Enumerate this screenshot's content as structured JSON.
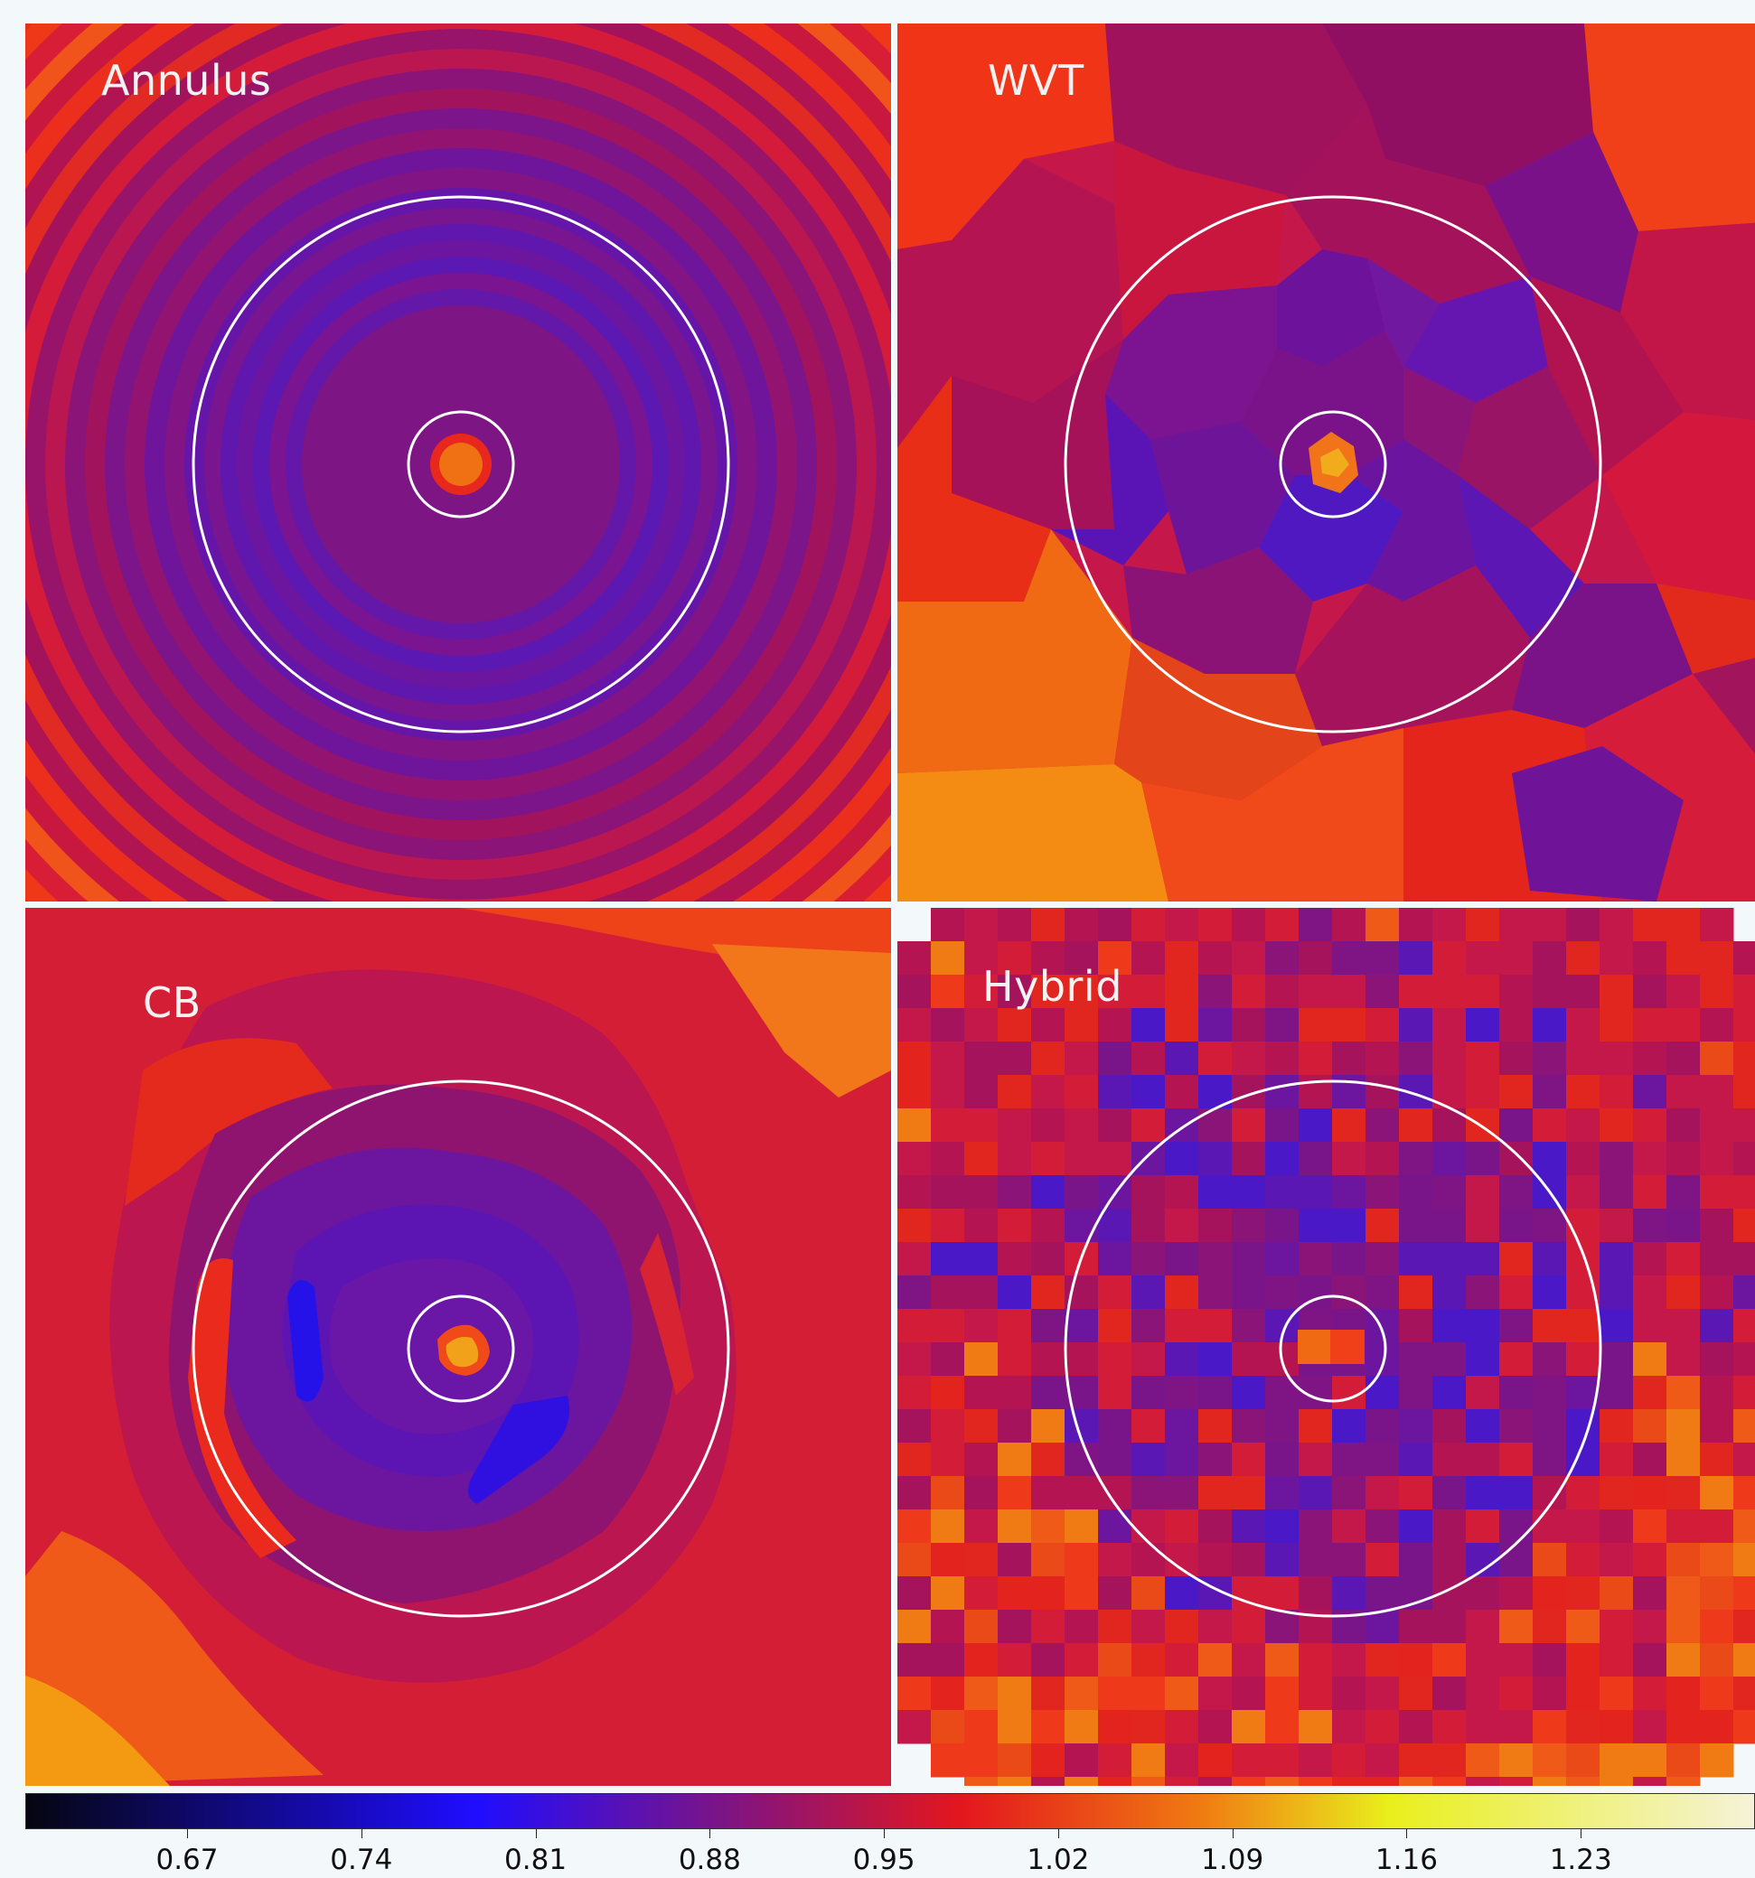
{
  "chart_data": {
    "type": "heatmap",
    "panels": [
      {
        "label": "Annulus",
        "binning": "concentric annuli"
      },
      {
        "label": "WVT",
        "binning": "weighted Voronoi tessellation"
      },
      {
        "label": "CB",
        "binning": "contour binning"
      },
      {
        "label": "Hybrid",
        "binning": "square pixel grid"
      }
    ],
    "overlay": "two concentric white circles centered on the core",
    "colormap": "black-blue-purple-red-orange-yellow-white",
    "colorbar": {
      "ticks": [
        "0.67",
        "0.74",
        "0.81",
        "0.88",
        "0.95",
        "1.02",
        "1.09",
        "1.16",
        "1.23"
      ],
      "range": [
        0.605,
        1.3
      ]
    }
  },
  "colors": {
    "cmap_black": "#050611",
    "cmap_blue": "#1f0dff",
    "cmap_purple": "#7a1488",
    "cmap_red": "#e3161e",
    "cmap_orange": "#f07b12",
    "cmap_yellow": "#e9ef1d",
    "cmap_cream": "#f5f3d8"
  }
}
